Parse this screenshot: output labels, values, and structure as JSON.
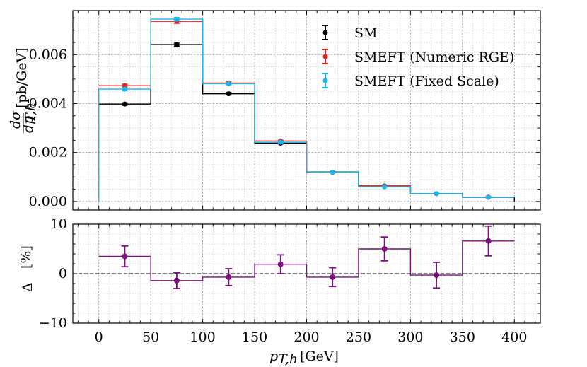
{
  "chart_data": [
    {
      "type": "step",
      "panel": "top",
      "xlabel": "p_{T,h} [GeV]",
      "ylabel": "dσ/dp_{T,h} [pb/GeV]",
      "ylabel_fraction_num": "dσ",
      "ylabel_fraction_den": "dp",
      "ylabel_sub": "T,h",
      "ylabel_unit": "[pb/GeV]",
      "xlim": [
        -25,
        425
      ],
      "ylim": [
        -0.00035,
        0.0078
      ],
      "yticks": [
        0.0,
        0.002,
        0.004,
        0.006
      ],
      "ytick_labels": [
        "0.000",
        "0.002",
        "0.004",
        "0.006"
      ],
      "bin_edges": [
        0,
        50,
        100,
        150,
        200,
        250,
        300,
        350,
        400
      ],
      "bin_centers": [
        25,
        75,
        125,
        175,
        225,
        275,
        325,
        375
      ],
      "series": [
        {
          "name": "SM",
          "color": "#000000",
          "values": [
            0.00398,
            0.00641,
            0.0044,
            0.00238,
            0.0012,
            0.00062,
            0.00032,
            0.00017
          ],
          "errors": [
            5e-05,
            6e-05,
            5e-05,
            3e-05,
            2e-05,
            1e-05,
            1e-05,
            1e-05
          ]
        },
        {
          "name": "SMEFT (Numeric RGE)",
          "color": "#e8211d",
          "values": [
            0.00473,
            0.00736,
            0.00484,
            0.00247,
            0.00119,
            0.00064,
            0.00032,
            0.00018
          ],
          "errors": [
            6e-05,
            8e-05,
            4e-05,
            3e-05,
            2e-05,
            1e-05,
            1e-05,
            1e-05
          ]
        },
        {
          "name": "SMEFT (Fixed Scale)",
          "color": "#18b6ea",
          "values": [
            0.00459,
            0.00745,
            0.00481,
            0.00242,
            0.00119,
            0.0006,
            0.00032,
            0.00017
          ],
          "errors": [
            6e-05,
            7e-05,
            4e-05,
            3e-05,
            2e-05,
            1e-05,
            1e-05,
            1e-05
          ]
        }
      ],
      "legend": {
        "position": "top-right",
        "entries": [
          "SM",
          "SMEFT (Numeric RGE)",
          "SMEFT (Fixed Scale)"
        ]
      },
      "grid": true
    },
    {
      "type": "step",
      "panel": "bottom",
      "xlabel": "p_{T,h} [GeV]",
      "xlabel_main": "p",
      "xlabel_sub": "T,h",
      "xlabel_unit": "[GeV]",
      "ylabel": "Δ [%]",
      "ylabel_symbol": "Δ",
      "ylabel_unit": "[%]",
      "xlim": [
        -25,
        425
      ],
      "ylim": [
        -10,
        10
      ],
      "xticks": [
        0,
        50,
        100,
        150,
        200,
        250,
        300,
        350,
        400
      ],
      "xtick_labels": [
        "0",
        "50",
        "100",
        "150",
        "200",
        "250",
        "300",
        "350",
        "400"
      ],
      "yticks": [
        -10,
        0,
        10
      ],
      "ytick_labels": [
        "−10",
        "0",
        "10"
      ],
      "bin_edges": [
        0,
        50,
        100,
        150,
        200,
        250,
        300,
        350,
        400
      ],
      "bin_centers": [
        25,
        75,
        125,
        175,
        225,
        275,
        325,
        375
      ],
      "reference_line": 0,
      "series": [
        {
          "name": "Δ",
          "color": "#7b0f7b",
          "values": [
            3.5,
            -1.4,
            -0.7,
            1.9,
            -0.7,
            5.0,
            -0.3,
            6.6
          ],
          "errors": [
            2.1,
            1.6,
            1.7,
            1.9,
            1.9,
            2.4,
            2.6,
            3.0
          ]
        }
      ],
      "grid": true
    }
  ]
}
